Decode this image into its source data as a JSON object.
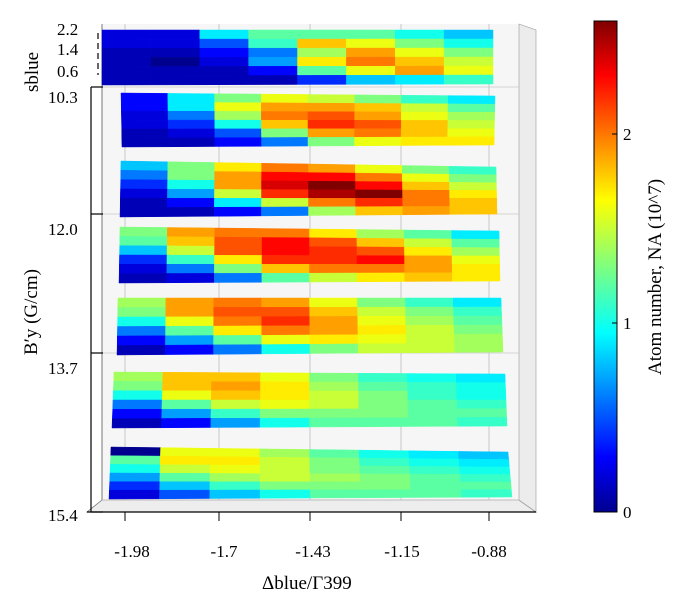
{
  "chart_data": {
    "type": "heatmap",
    "title": "",
    "xlabel": "Δblue/Γ399",
    "ylabel": "B′y (G/cm)",
    "zlabel": "sblue",
    "colorbar_label": "Atom number, NA (10^7)",
    "colorbar_ticks": [
      "0",
      "1",
      "2"
    ],
    "colorbar_range": [
      0,
      2.6
    ],
    "colormap": "jet",
    "x_ticks": [
      "-1.98",
      "-1.7",
      "-1.43",
      "-1.15",
      "-0.88"
    ],
    "y_ticks": [
      "10.3",
      "12.0",
      "13.7",
      "15.4"
    ],
    "z_ticks": [
      "2.2",
      "1.4",
      "0.6"
    ],
    "grid": true,
    "panels": [
      {
        "row": 0,
        "values": [
          [
            0.2,
            0.2,
            0.9,
            1.2,
            1.2,
            1.2,
            1.0,
            0.8
          ],
          [
            0.2,
            0.2,
            0.5,
            1.1,
            1.8,
            1.6,
            1.3,
            1.0
          ],
          [
            0.1,
            0.1,
            0.3,
            0.6,
            1.4,
            1.9,
            1.6,
            1.3
          ],
          [
            0.1,
            0.0,
            0.2,
            0.7,
            1.7,
            2.0,
            1.8,
            1.5
          ],
          [
            0.1,
            0.1,
            0.1,
            0.3,
            1.2,
            1.6,
            1.9,
            1.6
          ],
          [
            0.1,
            0.1,
            0.1,
            0.1,
            0.4,
            0.8,
            0.9,
            1.1
          ]
        ]
      },
      {
        "row": 1,
        "values": [
          [
            0.3,
            0.9,
            1.3,
            1.6,
            1.5,
            1.3,
            1.1,
            0.9
          ],
          [
            0.3,
            0.9,
            1.6,
            1.9,
            1.9,
            1.8,
            1.5,
            1.2
          ],
          [
            0.2,
            0.6,
            1.4,
            2.0,
            2.1,
            1.9,
            1.6,
            1.4
          ],
          [
            0.2,
            0.4,
            1.0,
            1.8,
            2.2,
            2.1,
            1.8,
            1.5
          ],
          [
            0.1,
            0.2,
            0.5,
            1.3,
            1.9,
            2.0,
            1.8,
            1.6
          ],
          [
            0.1,
            0.1,
            0.3,
            0.6,
            1.3,
            1.6,
            1.7,
            1.7
          ]
        ]
      },
      {
        "row": 2,
        "values": [
          [
            0.8,
            1.3,
            1.7,
            2.0,
            1.9,
            1.6,
            1.3,
            1.1
          ],
          [
            0.6,
            1.3,
            1.9,
            2.3,
            2.3,
            2.0,
            1.6,
            1.3
          ],
          [
            0.4,
            1.0,
            1.9,
            2.4,
            2.6,
            2.3,
            1.8,
            1.5
          ],
          [
            0.2,
            0.7,
            1.5,
            2.2,
            2.5,
            2.6,
            2.0,
            1.7
          ],
          [
            0.1,
            0.3,
            0.9,
            1.5,
            2.0,
            2.2,
            2.0,
            1.8
          ],
          [
            0.1,
            0.1,
            0.3,
            0.6,
            1.4,
            1.8,
            1.9,
            1.8
          ]
        ]
      },
      {
        "row": 3,
        "values": [
          [
            1.3,
            1.9,
            2.0,
            2.0,
            1.7,
            1.4,
            1.2,
            0.9
          ],
          [
            1.2,
            1.8,
            2.1,
            2.3,
            2.1,
            1.8,
            1.5,
            1.2
          ],
          [
            0.8,
            1.5,
            2.1,
            2.3,
            2.2,
            2.1,
            1.7,
            1.4
          ],
          [
            0.4,
            1.1,
            1.7,
            2.2,
            2.2,
            2.3,
            1.9,
            1.6
          ],
          [
            0.2,
            0.6,
            1.3,
            1.8,
            2.0,
            2.0,
            1.9,
            1.7
          ],
          [
            0.1,
            0.2,
            0.6,
            1.2,
            1.5,
            1.7,
            1.8,
            1.7
          ]
        ]
      },
      {
        "row": 4,
        "values": [
          [
            1.4,
            1.9,
            2.0,
            1.9,
            1.6,
            1.3,
            1.1,
            0.9
          ],
          [
            1.3,
            1.9,
            2.1,
            2.1,
            1.8,
            1.5,
            1.3,
            1.1
          ],
          [
            1.0,
            1.6,
            2.0,
            2.2,
            1.9,
            1.6,
            1.4,
            1.2
          ],
          [
            0.6,
            1.2,
            1.7,
            2.0,
            1.9,
            1.7,
            1.5,
            1.3
          ],
          [
            0.3,
            0.7,
            1.2,
            1.6,
            1.7,
            1.6,
            1.5,
            1.4
          ],
          [
            0.1,
            0.3,
            0.6,
            1.0,
            1.3,
            1.5,
            1.5,
            1.4
          ]
        ]
      },
      {
        "row": 5,
        "values": [
          [
            1.4,
            1.8,
            1.8,
            1.6,
            1.3,
            1.1,
            1.0,
            0.9
          ],
          [
            1.3,
            1.8,
            1.9,
            1.7,
            1.4,
            1.2,
            1.1,
            1.0
          ],
          [
            1.0,
            1.6,
            1.8,
            1.7,
            1.5,
            1.3,
            1.1,
            1.0
          ],
          [
            0.6,
            1.2,
            1.5,
            1.6,
            1.5,
            1.3,
            1.2,
            1.1
          ],
          [
            0.3,
            0.7,
            1.1,
            1.3,
            1.3,
            1.3,
            1.2,
            1.2
          ],
          [
            0.1,
            0.3,
            0.7,
            1.0,
            1.2,
            1.2,
            1.2,
            1.1
          ]
        ]
      },
      {
        "row": 6,
        "values": [
          [
            0.0,
            1.6,
            1.6,
            1.4,
            1.2,
            1.0,
            0.9,
            0.8
          ],
          [
            1.2,
            1.7,
            1.7,
            1.5,
            1.3,
            1.1,
            1.0,
            0.9
          ],
          [
            1.0,
            1.5,
            1.6,
            1.5,
            1.3,
            1.2,
            1.1,
            1.0
          ],
          [
            0.7,
            1.2,
            1.4,
            1.5,
            1.4,
            1.3,
            1.2,
            1.1
          ],
          [
            0.4,
            0.8,
            1.1,
            1.3,
            1.3,
            1.3,
            1.2,
            1.2
          ],
          [
            0.2,
            0.5,
            0.8,
            1.0,
            1.2,
            1.2,
            1.2,
            1.1
          ]
        ]
      }
    ]
  }
}
